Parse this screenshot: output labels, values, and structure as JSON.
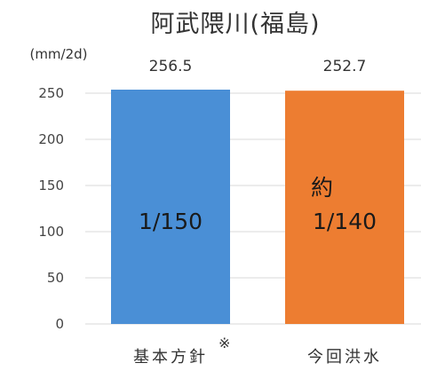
{
  "chart_data": {
    "type": "bar",
    "title": "阿武隈川(福島)",
    "ylabel": "(mm/2d)",
    "ylim": [
      0,
      250
    ],
    "yticks": [
      "0",
      "50",
      "100",
      "150",
      "200",
      "250"
    ],
    "grid": true,
    "categories": [
      "基本方針",
      "今回洪水"
    ],
    "category_note": "※",
    "values": [
      256.5,
      252.7
    ],
    "value_labels": [
      "256.5",
      "252.7"
    ],
    "bar_labels": [
      [
        "1/150"
      ],
      [
        "約",
        "1/140"
      ]
    ],
    "colors": [
      "#4a8fd6",
      "#ed7d31"
    ]
  }
}
